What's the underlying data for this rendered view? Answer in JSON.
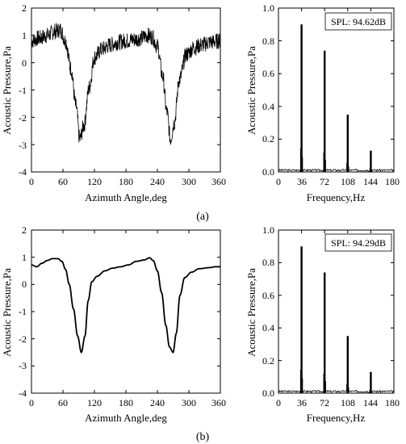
{
  "rows": [
    {
      "label": "(a)",
      "left": {
        "xlabel": "Azimuth Angle,deg",
        "ylabel": "Acoustic Pressure,Pa",
        "x_ticks": [
          "0",
          "60",
          "120",
          "180",
          "240",
          "300",
          "360"
        ],
        "y_ticks": [
          "2",
          "1",
          "0",
          "-1",
          "-2",
          "-3",
          "-4"
        ]
      },
      "right": {
        "xlabel": "Frequency,Hz",
        "ylabel": "Acoustic Pressure,Pa",
        "x_ticks": [
          "0",
          "36",
          "72",
          "108",
          "144",
          "180"
        ],
        "y_ticks": [
          "1.0",
          "0.8",
          "0.6",
          "0.4",
          "0.2",
          "0.0"
        ],
        "annotation": "SPL: 94.62dB"
      }
    },
    {
      "label": "(b)",
      "left": {
        "xlabel": "Azimuth Angle,deg",
        "ylabel": "Acoustic Pressure,Pa",
        "x_ticks": [
          "0",
          "60",
          "120",
          "180",
          "240",
          "300",
          "360"
        ],
        "y_ticks": [
          "2",
          "1",
          "0",
          "-1",
          "-2",
          "-3",
          "-4"
        ]
      },
      "right": {
        "xlabel": "Frequency,Hz",
        "ylabel": "Acoustic Pressure,Pa",
        "x_ticks": [
          "0",
          "36",
          "72",
          "108",
          "144",
          "180"
        ],
        "y_ticks": [
          "1.0",
          "0.8",
          "0.6",
          "0.4",
          "0.2",
          "0.0"
        ],
        "annotation": "SPL: 94.29dB"
      }
    }
  ],
  "chart_data": [
    {
      "type": "line",
      "panel": "(a) time signal",
      "xlabel": "Azimuth Angle,deg",
      "ylabel": "Acoustic Pressure,Pa",
      "xlim": [
        0,
        360
      ],
      "ylim": [
        -4,
        2
      ],
      "series": [
        {
          "x": [
            0,
            15,
            30,
            45,
            55,
            65,
            75,
            85,
            92,
            100,
            110,
            120,
            135,
            150,
            165,
            180,
            195,
            210,
            220,
            230,
            240,
            250,
            258,
            265,
            272,
            282,
            295,
            310,
            325,
            340,
            360
          ],
          "values": [
            0.8,
            0.9,
            1.0,
            1.15,
            1.2,
            0.8,
            -0.2,
            -1.6,
            -2.8,
            -2.3,
            -0.9,
            0.2,
            0.5,
            0.65,
            0.75,
            0.8,
            0.85,
            0.9,
            1.0,
            0.95,
            0.6,
            -0.5,
            -1.8,
            -2.8,
            -2.2,
            -0.6,
            0.3,
            0.55,
            0.65,
            0.75,
            0.8
          ]
        }
      ],
      "noise_amplitude": 0.3
    },
    {
      "type": "bar",
      "panel": "(a) spectrum",
      "xlabel": "Frequency,Hz",
      "ylabel": "Acoustic Pressure,Pa",
      "xlim": [
        0,
        180
      ],
      "ylim": [
        0,
        1.0
      ],
      "categories": [
        36,
        72,
        108,
        144
      ],
      "values": [
        0.9,
        0.74,
        0.35,
        0.13
      ],
      "annotation": "SPL: 94.62dB"
    },
    {
      "type": "line",
      "panel": "(b) time signal",
      "xlabel": "Azimuth Angle,deg",
      "ylabel": "Acoustic Pressure,Pa",
      "xlim": [
        0,
        360
      ],
      "ylim": [
        -4,
        2
      ],
      "series": [
        {
          "x": [
            0,
            10,
            20,
            30,
            40,
            50,
            58,
            65,
            72,
            80,
            88,
            95,
            102,
            108,
            115,
            125,
            140,
            155,
            170,
            185,
            200,
            215,
            225,
            232,
            240,
            248,
            256,
            263,
            270,
            276,
            283,
            292,
            305,
            320,
            340,
            350,
            360
          ],
          "values": [
            0.72,
            0.65,
            0.78,
            0.88,
            0.95,
            0.95,
            0.85,
            0.55,
            0.0,
            -0.9,
            -1.9,
            -2.5,
            -1.9,
            -0.6,
            0.1,
            0.3,
            0.5,
            0.6,
            0.65,
            0.72,
            0.85,
            0.9,
            0.98,
            0.88,
            0.5,
            -0.3,
            -1.5,
            -2.3,
            -2.5,
            -1.8,
            -0.4,
            0.25,
            0.45,
            0.58,
            0.62,
            0.65,
            0.65
          ]
        }
      ]
    },
    {
      "type": "bar",
      "panel": "(b) spectrum",
      "xlabel": "Frequency,Hz",
      "ylabel": "Acoustic Pressure,Pa",
      "xlim": [
        0,
        180
      ],
      "ylim": [
        0,
        1.0
      ],
      "categories": [
        36,
        72,
        108,
        144
      ],
      "values": [
        0.9,
        0.74,
        0.35,
        0.13
      ],
      "annotation": "SPL: 94.29dB"
    }
  ]
}
